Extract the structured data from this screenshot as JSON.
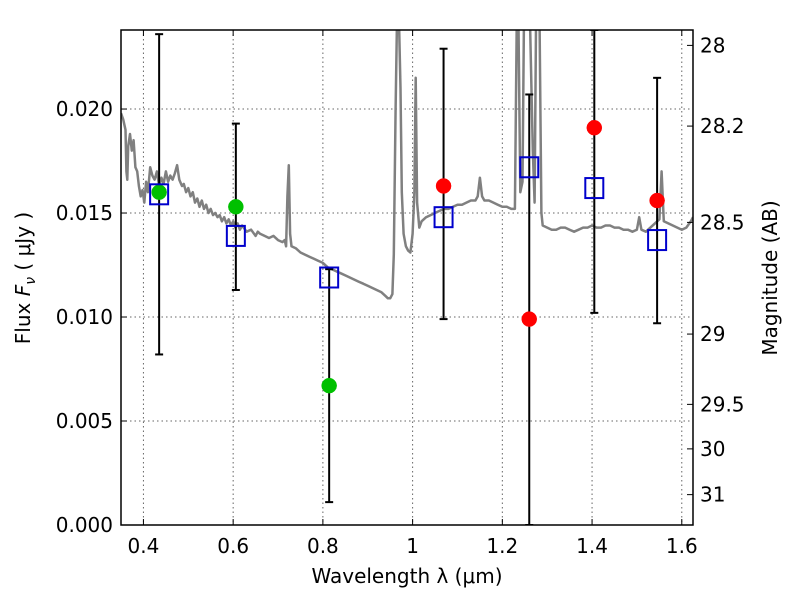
{
  "chart_data": {
    "type": "scatter",
    "xlabel": "Wavelength  λ (μm)",
    "ylabel": "Flux  F_ν  ( μJy )",
    "ylabel_parts": {
      "prefix": "Flux  ",
      "symbol": "F",
      "subscript": "ν",
      "suffix": "  ( μJy )"
    },
    "ylabel_right": "Magnitude (AB)",
    "xlim": [
      0.35,
      1.625
    ],
    "ylim": [
      0.0,
      0.0238
    ],
    "grid": true,
    "x_ticks": [
      0.4,
      0.6,
      0.8,
      1.0,
      1.2,
      1.4,
      1.6
    ],
    "x_tick_labels": [
      "0.4",
      "0.6",
      "0.8",
      "1",
      "1.2",
      "1.4",
      "1.6"
    ],
    "y_ticks": [
      0.0,
      0.005,
      0.01,
      0.015,
      0.02
    ],
    "y_tick_labels": [
      "0.000",
      "0.005",
      "0.010",
      "0.015",
      "0.020"
    ],
    "right_ticks": [
      {
        "label": "28",
        "flux": 0.02306
      },
      {
        "label": "28.2",
        "flux": 0.01918
      },
      {
        "label": "28.5",
        "flux": 0.01455
      },
      {
        "label": "29",
        "flux": 0.00918
      },
      {
        "label": "29.5",
        "flux": 0.0058
      },
      {
        "label": "30",
        "flux": 0.00366
      },
      {
        "label": "31",
        "flux": 0.00146
      }
    ],
    "colors": {
      "model": "#808080",
      "green": "#00c000",
      "red": "#ff0000",
      "square": "#0000cc",
      "errorbar": "#000000"
    },
    "series": [
      {
        "marker": "square",
        "color": "#0000cc",
        "points": [
          {
            "x": 0.435,
            "y": 0.0159,
            "ylo": 0.0082,
            "yhi": 0.0236
          },
          {
            "x": 0.606,
            "y": 0.0139,
            "ylo": 0.0113,
            "yhi": 0.0193
          },
          {
            "x": 0.814,
            "y": 0.0119,
            "ylo": 0.0011,
            "yhi": 0.0123
          },
          {
            "x": 1.069,
            "y": 0.0148,
            "ylo": 0.0099,
            "yhi": 0.0229
          },
          {
            "x": 1.26,
            "y": 0.0172,
            "ylo": 0.0,
            "yhi": 0.0207
          },
          {
            "x": 1.405,
            "y": 0.0162,
            "ylo": 0.0102,
            "yhi": 0.0238
          },
          {
            "x": 1.545,
            "y": 0.0137,
            "ylo": 0.0097,
            "yhi": 0.0215
          }
        ]
      },
      {
        "marker": "circle",
        "color": "#00c000",
        "points": [
          {
            "x": 0.435,
            "y": 0.016
          },
          {
            "x": 0.606,
            "y": 0.0153
          },
          {
            "x": 0.814,
            "y": 0.0067
          }
        ]
      },
      {
        "marker": "circle",
        "color": "#ff0000",
        "points": [
          {
            "x": 1.069,
            "y": 0.0163
          },
          {
            "x": 1.26,
            "y": 0.0099
          },
          {
            "x": 1.405,
            "y": 0.0191
          },
          {
            "x": 1.545,
            "y": 0.0156
          }
        ]
      }
    ],
    "model_spectrum": {
      "color": "#808080",
      "points": [
        [
          0.35,
          0.0198
        ],
        [
          0.355,
          0.0195
        ],
        [
          0.36,
          0.019
        ],
        [
          0.362,
          0.017
        ],
        [
          0.364,
          0.0166
        ],
        [
          0.366,
          0.0182
        ],
        [
          0.37,
          0.0188
        ],
        [
          0.374,
          0.018
        ],
        [
          0.378,
          0.0185
        ],
        [
          0.382,
          0.0172
        ],
        [
          0.386,
          0.017
        ],
        [
          0.39,
          0.0163
        ],
        [
          0.394,
          0.0158
        ],
        [
          0.398,
          0.0161
        ],
        [
          0.402,
          0.0155
        ],
        [
          0.406,
          0.0165
        ],
        [
          0.41,
          0.016
        ],
        [
          0.415,
          0.0172
        ],
        [
          0.42,
          0.0168
        ],
        [
          0.425,
          0.0166
        ],
        [
          0.43,
          0.017
        ],
        [
          0.435,
          0.0163
        ],
        [
          0.44,
          0.0167
        ],
        [
          0.445,
          0.0164
        ],
        [
          0.45,
          0.017
        ],
        [
          0.455,
          0.0165
        ],
        [
          0.46,
          0.0168
        ],
        [
          0.465,
          0.0166
        ],
        [
          0.47,
          0.0169
        ],
        [
          0.475,
          0.0173
        ],
        [
          0.48,
          0.0166
        ],
        [
          0.486,
          0.0163
        ],
        [
          0.49,
          0.0164
        ],
        [
          0.495,
          0.016
        ],
        [
          0.5,
          0.0162
        ],
        [
          0.505,
          0.0158
        ],
        [
          0.51,
          0.016
        ],
        [
          0.515,
          0.0155
        ],
        [
          0.52,
          0.0157
        ],
        [
          0.525,
          0.0153
        ],
        [
          0.53,
          0.0156
        ],
        [
          0.535,
          0.0152
        ],
        [
          0.54,
          0.0154
        ],
        [
          0.545,
          0.015
        ],
        [
          0.55,
          0.0152
        ],
        [
          0.555,
          0.0149
        ],
        [
          0.56,
          0.015
        ],
        [
          0.565,
          0.0148
        ],
        [
          0.57,
          0.0149
        ],
        [
          0.575,
          0.0146
        ],
        [
          0.58,
          0.0148
        ],
        [
          0.585,
          0.0145
        ],
        [
          0.59,
          0.0147
        ],
        [
          0.595,
          0.0144
        ],
        [
          0.6,
          0.0146
        ],
        [
          0.605,
          0.0143
        ],
        [
          0.61,
          0.0145
        ],
        [
          0.615,
          0.0142
        ],
        [
          0.62,
          0.0144
        ],
        [
          0.63,
          0.0141
        ],
        [
          0.64,
          0.0142
        ],
        [
          0.65,
          0.0139
        ],
        [
          0.655,
          0.0141
        ],
        [
          0.66,
          0.014
        ],
        [
          0.67,
          0.0139
        ],
        [
          0.68,
          0.0138
        ],
        [
          0.69,
          0.0139
        ],
        [
          0.7,
          0.0137
        ],
        [
          0.71,
          0.0136
        ],
        [
          0.715,
          0.0137
        ],
        [
          0.718,
          0.0134
        ],
        [
          0.721,
          0.0158
        ],
        [
          0.724,
          0.0173
        ],
        [
          0.727,
          0.014
        ],
        [
          0.73,
          0.0134
        ],
        [
          0.74,
          0.0133
        ],
        [
          0.75,
          0.0131
        ],
        [
          0.76,
          0.013
        ],
        [
          0.77,
          0.0129
        ],
        [
          0.78,
          0.0128
        ],
        [
          0.79,
          0.0127
        ],
        [
          0.8,
          0.0126
        ],
        [
          0.81,
          0.0124
        ],
        [
          0.82,
          0.0123
        ],
        [
          0.83,
          0.0122
        ],
        [
          0.84,
          0.0121
        ],
        [
          0.85,
          0.012
        ],
        [
          0.86,
          0.0119
        ],
        [
          0.87,
          0.0118
        ],
        [
          0.88,
          0.0117
        ],
        [
          0.89,
          0.0116
        ],
        [
          0.9,
          0.0115
        ],
        [
          0.91,
          0.0114
        ],
        [
          0.92,
          0.0113
        ],
        [
          0.93,
          0.0112
        ],
        [
          0.94,
          0.011
        ],
        [
          0.945,
          0.0109
        ],
        [
          0.95,
          0.0109
        ],
        [
          0.955,
          0.0111
        ],
        [
          0.958,
          0.013
        ],
        [
          0.962,
          0.02
        ],
        [
          0.965,
          0.024
        ],
        [
          0.97,
          0.024
        ],
        [
          0.973,
          0.021
        ],
        [
          0.976,
          0.016
        ],
        [
          0.98,
          0.014
        ],
        [
          0.985,
          0.0134
        ],
        [
          0.99,
          0.0132
        ],
        [
          0.995,
          0.0131
        ],
        [
          1.0,
          0.014
        ],
        [
          1.004,
          0.016
        ],
        [
          1.007,
          0.0215
        ],
        [
          1.01,
          0.0155
        ],
        [
          1.015,
          0.0143
        ],
        [
          1.02,
          0.0146
        ],
        [
          1.03,
          0.0148
        ],
        [
          1.04,
          0.0149
        ],
        [
          1.05,
          0.015
        ],
        [
          1.06,
          0.0151
        ],
        [
          1.07,
          0.0152
        ],
        [
          1.08,
          0.0152
        ],
        [
          1.09,
          0.0153
        ],
        [
          1.1,
          0.0154
        ],
        [
          1.11,
          0.0154
        ],
        [
          1.12,
          0.0155
        ],
        [
          1.13,
          0.0156
        ],
        [
          1.14,
          0.0156
        ],
        [
          1.145,
          0.0158
        ],
        [
          1.15,
          0.0167
        ],
        [
          1.155,
          0.0158
        ],
        [
          1.16,
          0.0156
        ],
        [
          1.17,
          0.0156
        ],
        [
          1.18,
          0.0155
        ],
        [
          1.19,
          0.0154
        ],
        [
          1.2,
          0.0153
        ],
        [
          1.21,
          0.0153
        ],
        [
          1.22,
          0.0152
        ],
        [
          1.228,
          0.0152
        ],
        [
          1.232,
          0.024
        ],
        [
          1.236,
          0.024
        ],
        [
          1.24,
          0.016
        ],
        [
          1.245,
          0.0165
        ],
        [
          1.248,
          0.024
        ],
        [
          1.262,
          0.024
        ],
        [
          1.268,
          0.018
        ],
        [
          1.272,
          0.0155
        ],
        [
          1.275,
          0.024
        ],
        [
          1.283,
          0.024
        ],
        [
          1.287,
          0.015
        ],
        [
          1.29,
          0.0144
        ],
        [
          1.3,
          0.0143
        ],
        [
          1.31,
          0.0142
        ],
        [
          1.32,
          0.0142
        ],
        [
          1.33,
          0.0143
        ],
        [
          1.34,
          0.0143
        ],
        [
          1.35,
          0.0142
        ],
        [
          1.36,
          0.0141
        ],
        [
          1.37,
          0.0142
        ],
        [
          1.38,
          0.0143
        ],
        [
          1.39,
          0.0143
        ],
        [
          1.4,
          0.0144
        ],
        [
          1.41,
          0.0143
        ],
        [
          1.42,
          0.0143
        ],
        [
          1.43,
          0.0144
        ],
        [
          1.44,
          0.0144
        ],
        [
          1.45,
          0.0143
        ],
        [
          1.46,
          0.0143
        ],
        [
          1.47,
          0.0142
        ],
        [
          1.48,
          0.0142
        ],
        [
          1.49,
          0.0141
        ],
        [
          1.5,
          0.0142
        ],
        [
          1.505,
          0.0148
        ],
        [
          1.51,
          0.0142
        ],
        [
          1.52,
          0.0141
        ],
        [
          1.53,
          0.0143
        ],
        [
          1.54,
          0.0145
        ],
        [
          1.55,
          0.0147
        ],
        [
          1.555,
          0.017
        ],
        [
          1.56,
          0.0146
        ],
        [
          1.57,
          0.0145
        ],
        [
          1.58,
          0.0144
        ],
        [
          1.59,
          0.0143
        ],
        [
          1.6,
          0.0142
        ],
        [
          1.61,
          0.0143
        ],
        [
          1.62,
          0.0146
        ],
        [
          1.625,
          0.0148
        ]
      ]
    }
  }
}
